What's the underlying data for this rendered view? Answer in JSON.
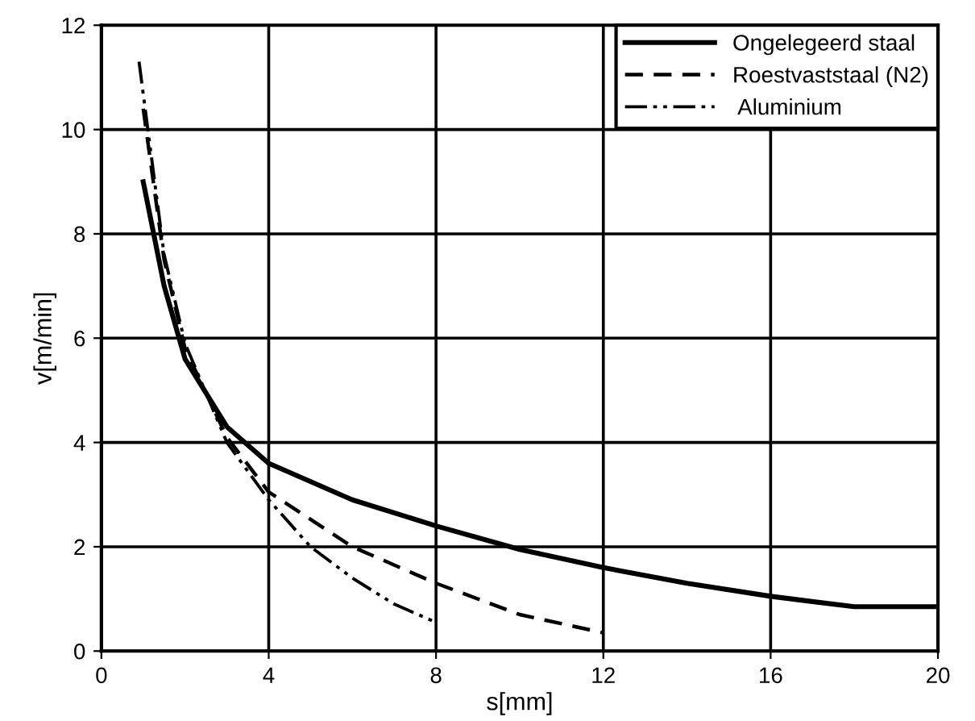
{
  "chart_data": {
    "type": "line",
    "xlabel": "s[mm]",
    "ylabel": "v[m/min]",
    "xlim": [
      0,
      20
    ],
    "xticks": [
      0,
      4,
      8,
      12,
      16,
      20
    ],
    "ylim": [
      0,
      12
    ],
    "yticks": [
      0,
      2,
      4,
      6,
      8,
      10,
      12
    ],
    "grid": true,
    "legend": "top right",
    "marker": "none",
    "series": [
      {
        "name": "Ongelegeerd staal",
        "color": "#000000",
        "line_style": "solid",
        "x": [
          1.0,
          1.5,
          2,
          3,
          4,
          6,
          8,
          10,
          12,
          14,
          16,
          18,
          20
        ],
        "values": [
          9.0,
          7.0,
          5.6,
          4.3,
          3.6,
          2.9,
          2.4,
          1.95,
          1.6,
          1.3,
          1.05,
          0.85,
          0.85
        ]
      },
      {
        "name": "Roestvaststaal (N2)",
        "color": "#000000",
        "line_style": "dashed",
        "x": [
          1.0,
          1.5,
          2,
          3,
          4,
          6,
          8,
          10,
          12
        ],
        "values": [
          10.4,
          7.5,
          5.8,
          4.1,
          3.05,
          2.0,
          1.3,
          0.7,
          0.35
        ]
      },
      {
        "name": " Aluminium",
        "color": "#000000",
        "line_style": "dashdot",
        "x": [
          0.9,
          1.5,
          2,
          3,
          4,
          5,
          6,
          7,
          8
        ],
        "values": [
          11.3,
          7.6,
          5.9,
          4.0,
          2.9,
          2.0,
          1.4,
          0.9,
          0.55
        ]
      }
    ]
  }
}
